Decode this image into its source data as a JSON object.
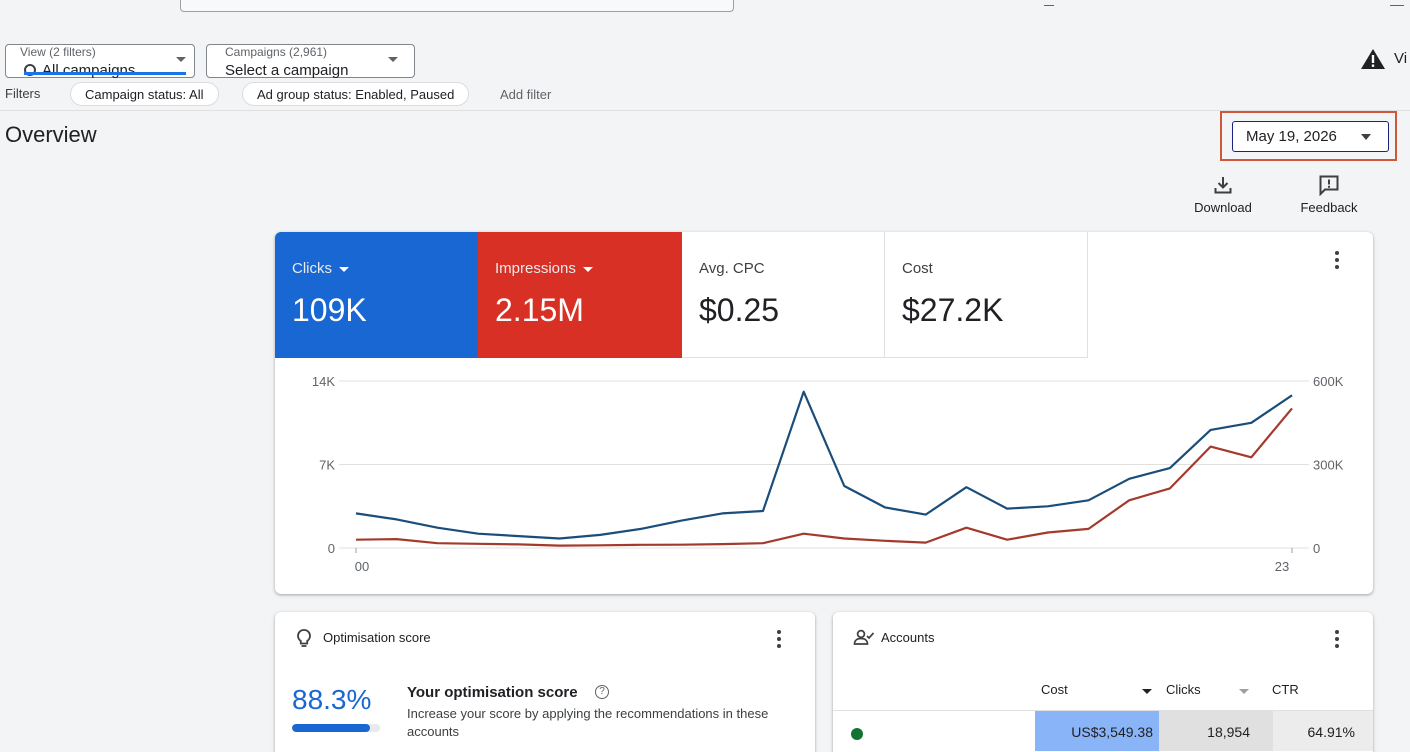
{
  "filters": {
    "view_label": "View (2 filters)",
    "view_value": "All campaigns",
    "campaigns_label": "Campaigns (2,961)",
    "campaigns_value": "Select a campaign",
    "filters_label": "Filters",
    "chip_campaign_status": "Campaign status: All",
    "chip_ad_group_status": "Ad group status: Enabled, Paused",
    "add_filter": "Add filter",
    "warning_text": "Vi"
  },
  "overview": {
    "title": "Overview",
    "date": "May 19, 2026",
    "download_label": "Download",
    "feedback_label": "Feedback"
  },
  "metrics": [
    {
      "label": "Clicks",
      "value": "109K",
      "color": "#1967d2"
    },
    {
      "label": "Impressions",
      "value": "2.15M",
      "color": "#d93025"
    },
    {
      "label": "Avg. CPC",
      "value": "$0.25"
    },
    {
      "label": "Cost",
      "value": "$27.2K"
    }
  ],
  "chart_data": {
    "type": "line",
    "x": [
      "00",
      "01",
      "02",
      "03",
      "04",
      "05",
      "06",
      "07",
      "08",
      "09",
      "10",
      "11",
      "12",
      "13",
      "14",
      "15",
      "16",
      "17",
      "18",
      "19",
      "20",
      "21",
      "22",
      "23"
    ],
    "x_tick_labels": [
      "00",
      "23"
    ],
    "left_axis": {
      "ticks": [
        "14K",
        "7K",
        "0"
      ],
      "ylim": [
        0,
        14000
      ]
    },
    "right_axis": {
      "ticks": [
        "600K",
        "300K",
        "0"
      ],
      "ylim": [
        0,
        600000
      ]
    },
    "grid": true,
    "series": [
      {
        "name": "Clicks",
        "axis": "left",
        "color": "#1a4d7a",
        "values": [
          2900,
          2400,
          1700,
          1200,
          1000,
          800,
          1100,
          1600,
          2300,
          2900,
          3100,
          13100,
          5200,
          3400,
          2800,
          5100,
          3300,
          3500,
          4000,
          5800,
          6700,
          9900,
          10500,
          12800
        ]
      },
      {
        "name": "Impressions",
        "axis": "left",
        "color": "#a33a2c",
        "values": [
          700,
          750,
          400,
          350,
          300,
          200,
          230,
          270,
          280,
          330,
          400,
          1200,
          800,
          600,
          450,
          1700,
          700,
          1300,
          1600,
          4000,
          5000,
          8500,
          7600,
          11700
        ]
      }
    ]
  },
  "optimisation": {
    "title": "Optimisation score",
    "score": "88.3%",
    "score_fraction": 0.883,
    "heading": "Your optimisation score",
    "help_glyph": "?",
    "description": "Increase your score by applying the recommendations in these accounts"
  },
  "accounts": {
    "title": "Accounts",
    "columns": [
      "Cost",
      "Clicks",
      "CTR"
    ],
    "row": {
      "cost": "US$3,549.38",
      "clicks": "18,954",
      "ctr": "64.91%"
    },
    "cost_cell_color": "#8ab4f8",
    "clicks_cell_color": "#e0e0e0"
  }
}
